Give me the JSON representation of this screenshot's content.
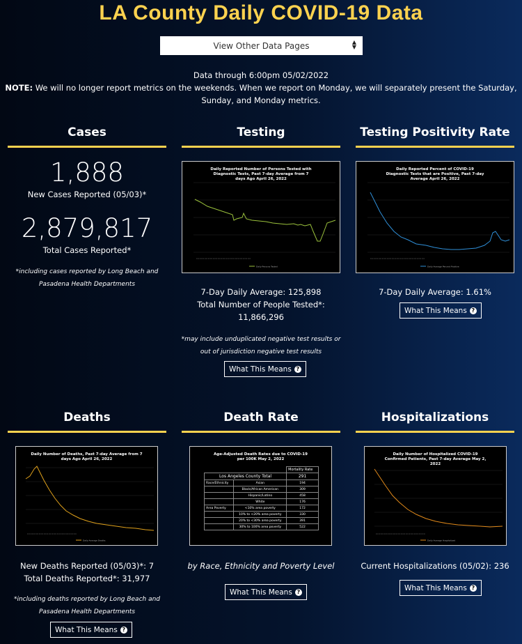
{
  "header": {
    "title": "LA County Daily COVID-19 Data",
    "select_label": "View Other Data Pages"
  },
  "notice": {
    "data_through": "Data through 6:00pm 05/02/2022",
    "note_label": "NOTE:",
    "note_text": "We will no longer report metrics on the weekends. When we report on Monday, we will separately present the Saturday, Sunday, and Monday metrics."
  },
  "cases": {
    "title": "Cases",
    "new_cases": "1,888",
    "new_cases_label": "New Cases Reported (05/03)*",
    "total_cases": "2,879,817",
    "total_cases_label": "Total Cases Reported*",
    "footnote": "*including cases reported by Long Beach and Pasadena Health Departments"
  },
  "testing": {
    "title": "Testing",
    "chart_title": "Daily Reported Number of Persons Tested with Diagnostic Tests, Past 7-day Average from 7 days Ago April 26, 2022",
    "avg_label": "7-Day Daily Average: 125,898",
    "total_label": "Total Number of People Tested*:",
    "total_value": "11,866,296",
    "footnote": "*may include unduplicated negative test results or out of jurisdiction negative test results",
    "button": "What This Means"
  },
  "positivity": {
    "title": "Testing Positivity Rate",
    "chart_title": "Daily Reported Percent of COVID-19 Diagnostic Tests that are Positive, Past 7-day Average April 26, 2022",
    "avg_label": "7-Day Daily Average: 1.61%",
    "button": "What This Means"
  },
  "deaths": {
    "title": "Deaths",
    "chart_title": "Daily Number of Deaths, Past 7-day Average from 7 days Ago April 26, 2022",
    "new_label": "New Deaths Reported (05/03)*: 7",
    "total_label": "Total Deaths Reported*: 31,977",
    "footnote": "*including deaths reported by Long Beach and Pasadena Health Departments",
    "button": "What This Means"
  },
  "death_rate": {
    "title": "Death Rate",
    "chart_title": "Age-Adjusted Death Rates due to COVID-19 per 100K May 2, 2022",
    "col_header": "Mortality Rate",
    "total_row": [
      "Los Angeles County Total",
      "291"
    ],
    "rows": [
      [
        "Race/Ethnicity",
        "Asian",
        "194"
      ],
      [
        "",
        "Black/African American",
        "309"
      ],
      [
        "",
        "Hispanic/Latino",
        "458"
      ],
      [
        "",
        "White",
        "176"
      ],
      [
        "Area Poverty",
        "<10% area poverty",
        "172"
      ],
      [
        "",
        "10% to <20% area poverty",
        "330"
      ],
      [
        "",
        "20% to <30% area poverty",
        "391"
      ],
      [
        "",
        "30% to 100% area poverty",
        "522"
      ]
    ],
    "caption": "by Race, Ethnicity and Poverty Level",
    "button": "What This Means"
  },
  "hospitalizations": {
    "title": "Hospitalizations",
    "chart_title": "Daily Number of Hospitalized COVID-19 Confirmed Patients, Past 7-day Average May 2, 2022",
    "current_label": "Current Hospitalizations (05/02): 236",
    "button": "What This Means"
  },
  "icons": {
    "select": "up-down-arrows-icon",
    "info": "question-circle-icon"
  },
  "colors": {
    "accent": "#fdd24f",
    "testing_line": "#9bc23c",
    "positivity_line": "#2f8fd8",
    "deaths_line": "#e0a11b",
    "hosp_line": "#e28a1a"
  }
}
